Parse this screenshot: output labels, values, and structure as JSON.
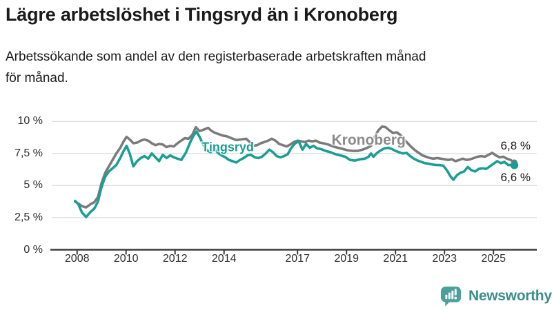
{
  "header": {
    "title": "Lägre arbetslöshet i Tingsryd än i Kronoberg",
    "subtitle_lines": [
      "Arbetssökande som andel av den registerbaserade arbetskraften månad",
      "för månad."
    ]
  },
  "chart_data": {
    "type": "line",
    "title": "Lägre arbetslöshet i Tingsryd än i Kronoberg",
    "subtitle": "Arbetssökande som andel av den registerbaserade arbetskraften månad för månad.",
    "unit": "%",
    "grid": true,
    "legend_position": "inline-labels",
    "ylim": [
      0,
      10
    ],
    "x_range": [
      2007.92,
      2025.85
    ],
    "y_ticks": [
      {
        "value": 0,
        "label": "0 %"
      },
      {
        "value": 2.5,
        "label": "2,5 %"
      },
      {
        "value": 5,
        "label": "5 %"
      },
      {
        "value": 7.5,
        "label": "7,5 %"
      },
      {
        "value": 10,
        "label": "10 %"
      }
    ],
    "x_ticks": [
      {
        "value": 2008,
        "label": "2008"
      },
      {
        "value": 2010,
        "label": "2010"
      },
      {
        "value": 2012,
        "label": "2012"
      },
      {
        "value": 2014,
        "label": "2014"
      },
      {
        "value": 2017,
        "label": "2017"
      },
      {
        "value": 2019,
        "label": "2019"
      },
      {
        "value": 2021,
        "label": "2021"
      },
      {
        "value": 2023,
        "label": "2023"
      },
      {
        "value": 2025,
        "label": "2025"
      }
    ],
    "colors": {
      "tingsryd": "#1b9e94",
      "kronoberg": "#7b7b7b",
      "gridline": "#dcdcdc",
      "axis": "#3c3c3c"
    },
    "series": [
      {
        "name": "Kronoberg",
        "color": "#7b7b7b",
        "label_color": "#8a8a8a",
        "label_font_size": 21,
        "inline_label_at": [
          2019.9,
          8.5
        ],
        "end_label": "6,8 %",
        "end_label_side": "above",
        "end_dot_radius": 4.5,
        "points": [
          [
            2007.92,
            3.75
          ],
          [
            2008.05,
            3.6
          ],
          [
            2008.2,
            3.4
          ],
          [
            2008.37,
            3.3
          ],
          [
            2008.55,
            3.55
          ],
          [
            2008.7,
            3.7
          ],
          [
            2008.85,
            4.1
          ],
          [
            2009.0,
            5.2
          ],
          [
            2009.15,
            6.0
          ],
          [
            2009.3,
            6.5
          ],
          [
            2009.45,
            7.0
          ],
          [
            2009.6,
            7.5
          ],
          [
            2009.75,
            7.9
          ],
          [
            2009.9,
            8.45
          ],
          [
            2010.02,
            8.8
          ],
          [
            2010.15,
            8.6
          ],
          [
            2010.3,
            8.3
          ],
          [
            2010.45,
            8.35
          ],
          [
            2010.6,
            8.5
          ],
          [
            2010.75,
            8.6
          ],
          [
            2010.9,
            8.5
          ],
          [
            2011.05,
            8.3
          ],
          [
            2011.2,
            8.15
          ],
          [
            2011.35,
            8.25
          ],
          [
            2011.5,
            8.2
          ],
          [
            2011.65,
            8.0
          ],
          [
            2011.8,
            8.1
          ],
          [
            2011.95,
            8.05
          ],
          [
            2012.1,
            8.3
          ],
          [
            2012.25,
            8.5
          ],
          [
            2012.4,
            8.7
          ],
          [
            2012.55,
            8.65
          ],
          [
            2012.7,
            8.95
          ],
          [
            2012.85,
            9.55
          ],
          [
            2013.0,
            9.25
          ],
          [
            2013.15,
            9.35
          ],
          [
            2013.35,
            9.5
          ],
          [
            2013.5,
            9.25
          ],
          [
            2013.65,
            9.1
          ],
          [
            2013.8,
            9.0
          ],
          [
            2013.95,
            8.9
          ],
          [
            2014.1,
            8.85
          ],
          [
            2014.3,
            8.7
          ],
          [
            2014.5,
            8.55
          ],
          [
            2014.7,
            8.6
          ],
          [
            2014.9,
            8.65
          ],
          [
            2015.05,
            8.4
          ],
          [
            2015.2,
            8.1
          ],
          [
            2015.35,
            8.15
          ],
          [
            2015.5,
            8.3
          ],
          [
            2015.65,
            8.4
          ],
          [
            2015.8,
            8.5
          ],
          [
            2015.95,
            8.65
          ],
          [
            2016.1,
            8.5
          ],
          [
            2016.25,
            8.25
          ],
          [
            2016.4,
            8.15
          ],
          [
            2016.55,
            8.05
          ],
          [
            2016.7,
            8.2
          ],
          [
            2016.85,
            8.4
          ],
          [
            2017.0,
            8.5
          ],
          [
            2017.15,
            8.45
          ],
          [
            2017.3,
            8.4
          ],
          [
            2017.45,
            8.5
          ],
          [
            2017.6,
            8.45
          ],
          [
            2017.75,
            8.5
          ],
          [
            2017.9,
            8.35
          ],
          [
            2018.05,
            8.3
          ],
          [
            2018.25,
            8.2
          ],
          [
            2018.45,
            8.05
          ],
          [
            2018.65,
            7.95
          ],
          [
            2018.85,
            7.85
          ],
          [
            2019.05,
            7.75
          ],
          [
            2019.25,
            7.7
          ],
          [
            2019.45,
            7.7
          ],
          [
            2019.65,
            7.8
          ],
          [
            2019.85,
            7.95
          ],
          [
            2020.0,
            8.1
          ],
          [
            2020.15,
            8.8
          ],
          [
            2020.3,
            9.3
          ],
          [
            2020.45,
            9.6
          ],
          [
            2020.6,
            9.55
          ],
          [
            2020.75,
            9.3
          ],
          [
            2020.9,
            9.1
          ],
          [
            2021.05,
            9.15
          ],
          [
            2021.2,
            8.95
          ],
          [
            2021.35,
            8.6
          ],
          [
            2021.5,
            8.3
          ],
          [
            2021.65,
            8.0
          ],
          [
            2021.8,
            7.75
          ],
          [
            2021.95,
            7.55
          ],
          [
            2022.1,
            7.35
          ],
          [
            2022.25,
            7.25
          ],
          [
            2022.4,
            7.15
          ],
          [
            2022.55,
            7.1
          ],
          [
            2022.7,
            7.15
          ],
          [
            2022.85,
            7.1
          ],
          [
            2023.0,
            7.05
          ],
          [
            2023.15,
            7.0
          ],
          [
            2023.3,
            7.05
          ],
          [
            2023.45,
            6.9
          ],
          [
            2023.6,
            7.0
          ],
          [
            2023.75,
            7.1
          ],
          [
            2023.9,
            7.0
          ],
          [
            2024.05,
            7.05
          ],
          [
            2024.2,
            7.15
          ],
          [
            2024.35,
            7.25
          ],
          [
            2024.5,
            7.3
          ],
          [
            2024.65,
            7.25
          ],
          [
            2024.8,
            7.4
          ],
          [
            2024.95,
            7.55
          ],
          [
            2025.1,
            7.35
          ],
          [
            2025.25,
            7.2
          ],
          [
            2025.4,
            7.25
          ],
          [
            2025.55,
            7.1
          ],
          [
            2025.7,
            7.0
          ],
          [
            2025.85,
            6.8
          ]
        ]
      },
      {
        "name": "Tingsryd",
        "color": "#1b9e94",
        "label_color": "#1b9e94",
        "label_font_size": 18,
        "inline_label_at": [
          2014.15,
          7.98
        ],
        "end_label": "6,6 %",
        "end_label_side": "below",
        "end_dot_radius": 5.8,
        "points": [
          [
            2007.92,
            3.8
          ],
          [
            2008.05,
            3.55
          ],
          [
            2008.2,
            2.9
          ],
          [
            2008.37,
            2.55
          ],
          [
            2008.55,
            2.95
          ],
          [
            2008.7,
            3.2
          ],
          [
            2008.85,
            3.75
          ],
          [
            2009.0,
            4.9
          ],
          [
            2009.15,
            5.7
          ],
          [
            2009.3,
            6.1
          ],
          [
            2009.45,
            6.35
          ],
          [
            2009.6,
            6.6
          ],
          [
            2009.75,
            7.1
          ],
          [
            2009.9,
            7.7
          ],
          [
            2010.02,
            8.1
          ],
          [
            2010.15,
            7.5
          ],
          [
            2010.3,
            6.5
          ],
          [
            2010.45,
            6.9
          ],
          [
            2010.6,
            7.15
          ],
          [
            2010.75,
            7.3
          ],
          [
            2010.9,
            7.1
          ],
          [
            2011.05,
            7.5
          ],
          [
            2011.2,
            7.2
          ],
          [
            2011.35,
            6.9
          ],
          [
            2011.5,
            7.4
          ],
          [
            2011.65,
            7.15
          ],
          [
            2011.8,
            7.35
          ],
          [
            2011.95,
            7.2
          ],
          [
            2012.1,
            7.1
          ],
          [
            2012.26,
            7.0
          ],
          [
            2012.45,
            7.6
          ],
          [
            2012.6,
            8.3
          ],
          [
            2012.75,
            8.9
          ],
          [
            2012.88,
            9.2
          ],
          [
            2013.0,
            8.8
          ],
          [
            2013.15,
            8.2
          ],
          [
            2013.3,
            7.75
          ],
          [
            2013.45,
            7.6
          ],
          [
            2013.6,
            7.9
          ],
          [
            2013.75,
            7.55
          ],
          [
            2013.9,
            7.35
          ],
          [
            2014.05,
            7.2
          ],
          [
            2014.2,
            7.0
          ],
          [
            2014.35,
            6.9
          ],
          [
            2014.5,
            6.8
          ],
          [
            2014.65,
            7.0
          ],
          [
            2014.8,
            7.15
          ],
          [
            2014.95,
            7.35
          ],
          [
            2015.1,
            7.4
          ],
          [
            2015.25,
            7.2
          ],
          [
            2015.4,
            7.15
          ],
          [
            2015.55,
            7.25
          ],
          [
            2015.7,
            7.5
          ],
          [
            2015.85,
            7.8
          ],
          [
            2016.0,
            7.6
          ],
          [
            2016.15,
            7.3
          ],
          [
            2016.3,
            7.2
          ],
          [
            2016.45,
            7.3
          ],
          [
            2016.6,
            7.45
          ],
          [
            2016.75,
            7.95
          ],
          [
            2016.9,
            8.3
          ],
          [
            2017.05,
            8.45
          ],
          [
            2017.2,
            7.8
          ],
          [
            2017.35,
            8.25
          ],
          [
            2017.5,
            7.95
          ],
          [
            2017.65,
            8.1
          ],
          [
            2017.8,
            7.9
          ],
          [
            2017.95,
            7.85
          ],
          [
            2018.15,
            7.7
          ],
          [
            2018.35,
            7.6
          ],
          [
            2018.55,
            7.45
          ],
          [
            2018.75,
            7.35
          ],
          [
            2018.95,
            7.25
          ],
          [
            2019.15,
            7.0
          ],
          [
            2019.35,
            6.95
          ],
          [
            2019.55,
            7.05
          ],
          [
            2019.75,
            7.1
          ],
          [
            2019.9,
            7.25
          ],
          [
            2020.0,
            7.5
          ],
          [
            2020.1,
            7.25
          ],
          [
            2020.25,
            7.55
          ],
          [
            2020.4,
            7.75
          ],
          [
            2020.55,
            7.9
          ],
          [
            2020.7,
            7.95
          ],
          [
            2020.85,
            7.85
          ],
          [
            2021.0,
            7.7
          ],
          [
            2021.15,
            7.6
          ],
          [
            2021.3,
            7.5
          ],
          [
            2021.45,
            7.55
          ],
          [
            2021.6,
            7.3
          ],
          [
            2021.75,
            7.1
          ],
          [
            2021.9,
            6.95
          ],
          [
            2022.05,
            6.85
          ],
          [
            2022.2,
            6.75
          ],
          [
            2022.35,
            6.7
          ],
          [
            2022.5,
            6.65
          ],
          [
            2022.65,
            6.6
          ],
          [
            2022.8,
            6.6
          ],
          [
            2022.95,
            6.55
          ],
          [
            2023.1,
            6.2
          ],
          [
            2023.25,
            5.7
          ],
          [
            2023.37,
            5.45
          ],
          [
            2023.5,
            5.8
          ],
          [
            2023.65,
            6.0
          ],
          [
            2023.8,
            6.1
          ],
          [
            2023.95,
            6.45
          ],
          [
            2024.1,
            6.2
          ],
          [
            2024.25,
            6.1
          ],
          [
            2024.4,
            6.3
          ],
          [
            2024.55,
            6.35
          ],
          [
            2024.7,
            6.3
          ],
          [
            2024.85,
            6.5
          ],
          [
            2025.0,
            6.7
          ],
          [
            2025.15,
            6.9
          ],
          [
            2025.3,
            6.75
          ],
          [
            2025.45,
            6.85
          ],
          [
            2025.6,
            6.6
          ],
          [
            2025.85,
            6.6
          ]
        ]
      }
    ]
  },
  "footer": {
    "brand": "Newsworthy",
    "logo_color": "#4ca09b",
    "text_color": "#3a8f8b"
  }
}
